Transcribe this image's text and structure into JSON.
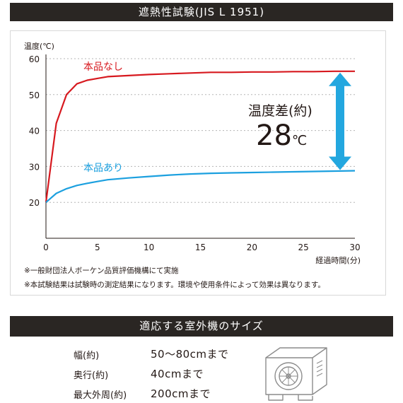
{
  "header": {
    "title": "遮熱性試験(JIS L 1951)"
  },
  "chart_data": {
    "type": "line",
    "ylabel": "温度(℃)",
    "xlabel": "経過時間(分)",
    "xlim": [
      0,
      30
    ],
    "ylim": [
      10,
      60
    ],
    "xticks": [
      0,
      5,
      10,
      15,
      20,
      25,
      30
    ],
    "yticks": [
      20,
      30,
      40,
      50,
      60
    ],
    "grid": "horizontal dotted",
    "series": [
      {
        "name": "本品なし",
        "color": "#d7191f",
        "x": [
          0,
          1,
          2,
          3,
          4,
          5,
          6,
          8,
          10,
          12,
          14,
          16,
          18,
          20,
          22,
          24,
          26,
          28,
          30
        ],
        "y": [
          20,
          42,
          50,
          53,
          54,
          54.5,
          55,
          55.3,
          55.6,
          55.8,
          56,
          56.2,
          56.2,
          56.3,
          56.3,
          56.4,
          56.4,
          56.5,
          56.5
        ]
      },
      {
        "name": "本品あり",
        "color": "#1ca0df",
        "x": [
          0,
          1,
          2,
          3,
          4,
          5,
          6,
          8,
          10,
          12,
          14,
          16,
          18,
          20,
          22,
          24,
          26,
          28,
          30
        ],
        "y": [
          20,
          22.5,
          23.8,
          24.7,
          25.3,
          25.8,
          26.3,
          26.8,
          27.2,
          27.6,
          27.9,
          28.1,
          28.2,
          28.3,
          28.4,
          28.5,
          28.6,
          28.7,
          28.8
        ]
      }
    ],
    "annotation": {
      "label": "温度差(約)",
      "value": "28",
      "unit": "℃",
      "arrow_color": "#23a7df"
    }
  },
  "notes": [
    "※一般財団法人ボーケン品質評価機構にて実施",
    "※本試験結果は試験時の測定結果になります。環境や使用条件によって効果は異なります。"
  ],
  "section2": {
    "title": "適応する室外機のサイズ",
    "rows": [
      {
        "label": "幅(約)",
        "value": "50〜80cmまで"
      },
      {
        "label": "奥行(約)",
        "value": "40cmまで"
      },
      {
        "label": "最大外周(約)",
        "value": "200cmまで"
      }
    ]
  }
}
